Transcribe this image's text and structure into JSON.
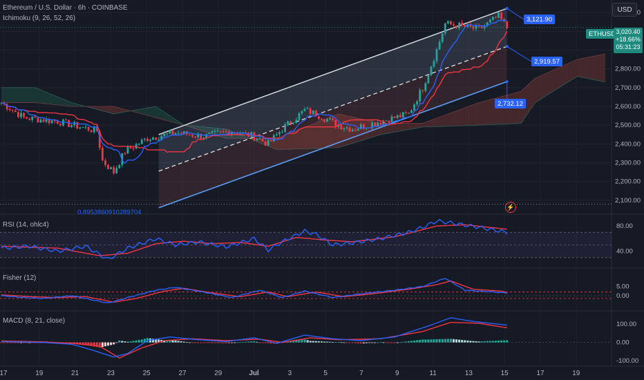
{
  "header": {
    "symbol_line": "Ethereum / U.S. Dollar · 6h · COINBASE",
    "indicator_line": "Ichimoku (9, 26, 52, 26)",
    "currency_button": "USD"
  },
  "price_tag": {
    "ticker": "ETHUSD",
    "price": "3,020.40",
    "change": "+18.66%",
    "countdown": "05:31:23"
  },
  "channel_labels": {
    "upper": "3,121.90",
    "mid": "2,919.57",
    "lower": "2,732.12",
    "ratio": "0.8953860910289704"
  },
  "panels": {
    "rsi": "RSI (14, ohlc4)",
    "fisher": "Fisher (12)",
    "macd": "MACD (8, 21, close)"
  },
  "colors": {
    "up": "#26a69a",
    "down": "#f23645",
    "tenkan": "#2962ff",
    "kijun": "#f23645",
    "cloud_bull": "#1b3a36",
    "cloud_bear": "#4a2a2e",
    "channel": "#5b9cf6",
    "rsi_line": "#2962ff",
    "rsi_signal": "#f23645",
    "band": "#7e57c2"
  },
  "chart_data": [
    {
      "type": "candlestick",
      "title": "Ethereum / U.S. Dollar · 6h · COINBASE",
      "y_ticks": [
        "3,100.00",
        "3,000.00",
        "2,900.00",
        "2,800.00",
        "2,700.00",
        "2,600.00",
        "2,500.00",
        "2,400.00",
        "2,300.00",
        "2,200.00",
        "2,100.00"
      ],
      "ylim": [
        2070,
        3130
      ],
      "x_ticks": [
        "17",
        "19",
        "21",
        "23",
        "25",
        "27",
        "29",
        "Jul",
        "3",
        "5",
        "7",
        "9",
        "11",
        "13",
        "15",
        "17",
        "19"
      ],
      "close_anchors": [
        [
          0,
          2620
        ],
        [
          8,
          2540
        ],
        [
          20,
          2520
        ],
        [
          34,
          2470
        ],
        [
          36,
          2310
        ],
        [
          40,
          2250
        ],
        [
          44,
          2360
        ],
        [
          52,
          2430
        ],
        [
          62,
          2460
        ],
        [
          72,
          2440
        ],
        [
          82,
          2470
        ],
        [
          90,
          2440
        ],
        [
          95,
          2400
        ],
        [
          100,
          2480
        ],
        [
          108,
          2580
        ],
        [
          112,
          2560
        ],
        [
          120,
          2500
        ],
        [
          125,
          2480
        ],
        [
          140,
          2540
        ],
        [
          145,
          2560
        ],
        [
          150,
          2700
        ],
        [
          155,
          2900
        ],
        [
          158,
          3040
        ],
        [
          163,
          3030
        ],
        [
          170,
          3010
        ],
        [
          177,
          3080
        ],
        [
          180,
          3020
        ]
      ],
      "channel": {
        "upper": [
          [
            56,
            2450
          ],
          [
            180,
            3121.9
          ]
        ],
        "mid": [
          [
            56,
            2255
          ],
          [
            180,
            2919.57
          ]
        ],
        "lower": [
          [
            56,
            2060
          ],
          [
            180,
            2732.12
          ]
        ]
      },
      "cloud_anchors": [
        [
          0,
          2700,
          2620
        ],
        [
          12,
          2700,
          2620
        ],
        [
          25,
          2620,
          2600
        ],
        [
          40,
          2560,
          2600
        ],
        [
          55,
          2600,
          2540
        ],
        [
          65,
          2500,
          2500
        ],
        [
          80,
          2480,
          2430
        ],
        [
          98,
          2370,
          2430
        ],
        [
          120,
          2380,
          2560
        ],
        [
          135,
          2450,
          2510
        ],
        [
          150,
          2490,
          2510
        ],
        [
          170,
          2500,
          2620
        ],
        [
          185,
          2510,
          2680
        ],
        [
          190,
          2620,
          2750
        ],
        [
          205,
          2760,
          2850
        ],
        [
          215,
          2730,
          2880
        ]
      ]
    },
    {
      "type": "line",
      "title": "RSI (14, ohlc4)",
      "y_ticks": [
        "80.00",
        "40.00"
      ],
      "ylim": [
        20,
        90
      ],
      "band": [
        30,
        70
      ],
      "rsi_anchors": [
        [
          0,
          45
        ],
        [
          10,
          48
        ],
        [
          20,
          40
        ],
        [
          30,
          48
        ],
        [
          38,
          27
        ],
        [
          45,
          45
        ],
        [
          55,
          60
        ],
        [
          62,
          50
        ],
        [
          70,
          55
        ],
        [
          80,
          47
        ],
        [
          90,
          60
        ],
        [
          95,
          42
        ],
        [
          100,
          55
        ],
        [
          108,
          72
        ],
        [
          112,
          67
        ],
        [
          118,
          50
        ],
        [
          126,
          54
        ],
        [
          135,
          60
        ],
        [
          145,
          70
        ],
        [
          150,
          78
        ],
        [
          155,
          88
        ],
        [
          160,
          85
        ],
        [
          170,
          78
        ],
        [
          180,
          70
        ]
      ],
      "signal_anchors": [
        [
          0,
          48
        ],
        [
          20,
          45
        ],
        [
          35,
          33
        ],
        [
          45,
          37
        ],
        [
          55,
          52
        ],
        [
          65,
          56
        ],
        [
          75,
          52
        ],
        [
          85,
          54
        ],
        [
          95,
          48
        ],
        [
          105,
          62
        ],
        [
          115,
          58
        ],
        [
          125,
          55
        ],
        [
          140,
          63
        ],
        [
          155,
          80
        ],
        [
          165,
          82
        ],
        [
          180,
          75
        ]
      ]
    },
    {
      "type": "line",
      "title": "Fisher (12)",
      "y_ticks": [
        "5.00",
        "0.00"
      ],
      "ylim": [
        -6,
        12
      ],
      "fisher_anchors": [
        [
          0,
          0
        ],
        [
          8,
          -1
        ],
        [
          15,
          -1.5
        ],
        [
          25,
          0
        ],
        [
          38,
          -4
        ],
        [
          45,
          -1
        ],
        [
          55,
          3
        ],
        [
          62,
          4.5
        ],
        [
          72,
          2
        ],
        [
          82,
          -1
        ],
        [
          92,
          3
        ],
        [
          100,
          -1
        ],
        [
          108,
          2.5
        ],
        [
          118,
          -1
        ],
        [
          128,
          1
        ],
        [
          140,
          3
        ],
        [
          150,
          5
        ],
        [
          158,
          9.5
        ],
        [
          165,
          3
        ],
        [
          175,
          2
        ],
        [
          180,
          1.5
        ]
      ],
      "trigger_anchors": [
        [
          0,
          0.5
        ],
        [
          10,
          -0.5
        ],
        [
          20,
          -1
        ],
        [
          30,
          -0.5
        ],
        [
          40,
          -3.5
        ],
        [
          48,
          -1.5
        ],
        [
          58,
          2.5
        ],
        [
          65,
          4
        ],
        [
          75,
          1.5
        ],
        [
          85,
          -0.5
        ],
        [
          95,
          2
        ],
        [
          102,
          -0.5
        ],
        [
          112,
          2
        ],
        [
          122,
          -0.5
        ],
        [
          132,
          1
        ],
        [
          145,
          3.5
        ],
        [
          155,
          6
        ],
        [
          160,
          8
        ],
        [
          168,
          3.5
        ],
        [
          178,
          2.5
        ],
        [
          180,
          1.8
        ]
      ]
    },
    {
      "type": "line",
      "title": "MACD (8, 21, close)",
      "y_ticks": [
        "100.00",
        "0.00",
        "-100.00"
      ],
      "ylim": [
        -115,
        150
      ],
      "macd_anchors": [
        [
          0,
          5
        ],
        [
          15,
          0
        ],
        [
          25,
          -10
        ],
        [
          32,
          -40
        ],
        [
          40,
          -80
        ],
        [
          45,
          -60
        ],
        [
          52,
          10
        ],
        [
          60,
          30
        ],
        [
          70,
          15
        ],
        [
          80,
          5
        ],
        [
          90,
          25
        ],
        [
          98,
          -5
        ],
        [
          108,
          40
        ],
        [
          118,
          20
        ],
        [
          128,
          10
        ],
        [
          140,
          30
        ],
        [
          152,
          90
        ],
        [
          160,
          135
        ],
        [
          168,
          115
        ],
        [
          180,
          95
        ]
      ],
      "signal_anchors": [
        [
          0,
          8
        ],
        [
          15,
          3
        ],
        [
          25,
          -5
        ],
        [
          35,
          -20
        ],
        [
          42,
          -85
        ],
        [
          50,
          -30
        ],
        [
          58,
          10
        ],
        [
          68,
          20
        ],
        [
          80,
          10
        ],
        [
          92,
          18
        ],
        [
          100,
          0
        ],
        [
          110,
          25
        ],
        [
          120,
          15
        ],
        [
          135,
          20
        ],
        [
          150,
          60
        ],
        [
          160,
          110
        ],
        [
          170,
          105
        ],
        [
          180,
          80
        ]
      ]
    }
  ]
}
